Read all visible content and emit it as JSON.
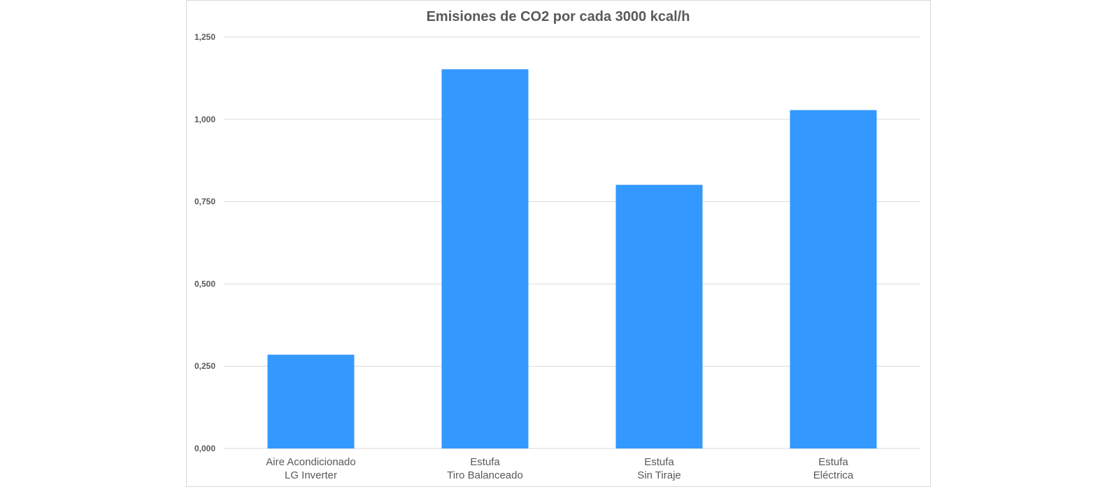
{
  "chart_data": {
    "type": "bar",
    "title": "Emisiones de CO2 por cada 3000 kcal/h",
    "xlabel": "",
    "ylabel": "",
    "ylim": [
      0,
      1.25
    ],
    "y_ticks": [
      "0,000",
      "0,250",
      "0,500",
      "0,750",
      "1,000",
      "1,250"
    ],
    "y_tick_values": [
      0,
      0.25,
      0.5,
      0.75,
      1.0,
      1.25
    ],
    "categories": [
      [
        "Aire Acondicionado",
        "LG Inverter"
      ],
      [
        "Estufa",
        "Tiro Balanceado"
      ],
      [
        "Estufa",
        "Sin Tiraje"
      ],
      [
        "Estufa",
        "Eléctrica"
      ]
    ],
    "values": [
      0.285,
      1.152,
      0.801,
      1.028
    ],
    "bar_color": "#3399ff",
    "grid": true,
    "legend": "none"
  }
}
